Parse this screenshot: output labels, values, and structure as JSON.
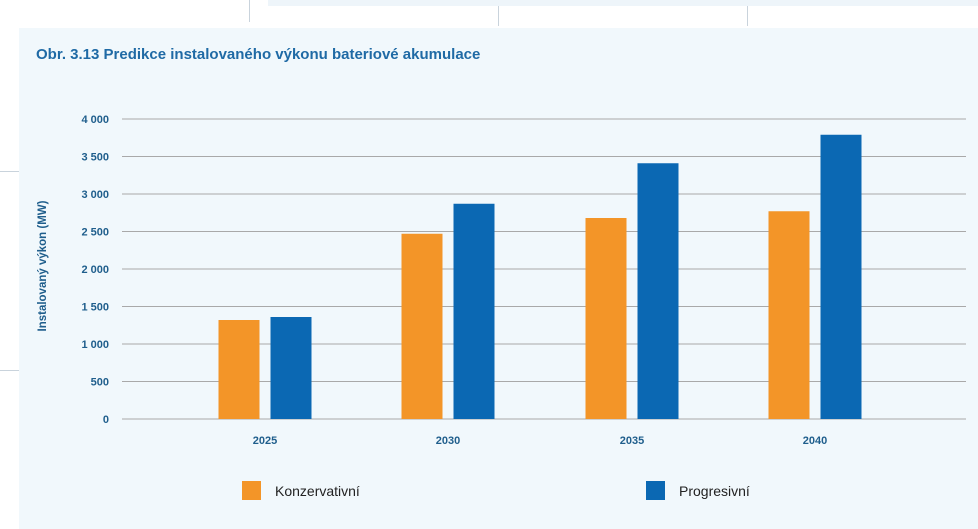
{
  "colors": {
    "konzervativni": "#f39528",
    "progresivni": "#0b68b3",
    "grid": "#a9a9a9",
    "text": "#1f5e8c"
  },
  "chart_data": {
    "type": "bar",
    "title": "Obr. 3.13 Predikce instalovaného výkonu bateriové akumulace",
    "xlabel": "",
    "ylabel": "Instalovaný výkon (MW)",
    "categories": [
      "2025",
      "2030",
      "2035",
      "2040"
    ],
    "series": [
      {
        "name": "Konzervativní",
        "color": "#f39528",
        "values": [
          1320,
          2470,
          2680,
          2770
        ]
      },
      {
        "name": "Progresivní",
        "color": "#0b68b3",
        "values": [
          1360,
          2870,
          3410,
          3790
        ]
      }
    ],
    "ylim": [
      0,
      4000
    ],
    "yticks": [
      0,
      500,
      1000,
      1500,
      2000,
      2500,
      3000,
      3500,
      4000
    ],
    "ytick_labels": [
      "0",
      "500",
      "1 000",
      "1 500",
      "2 000",
      "2 500",
      "3 000",
      "3 500",
      "4 000"
    ],
    "grid": true,
    "legend": "bottom"
  }
}
